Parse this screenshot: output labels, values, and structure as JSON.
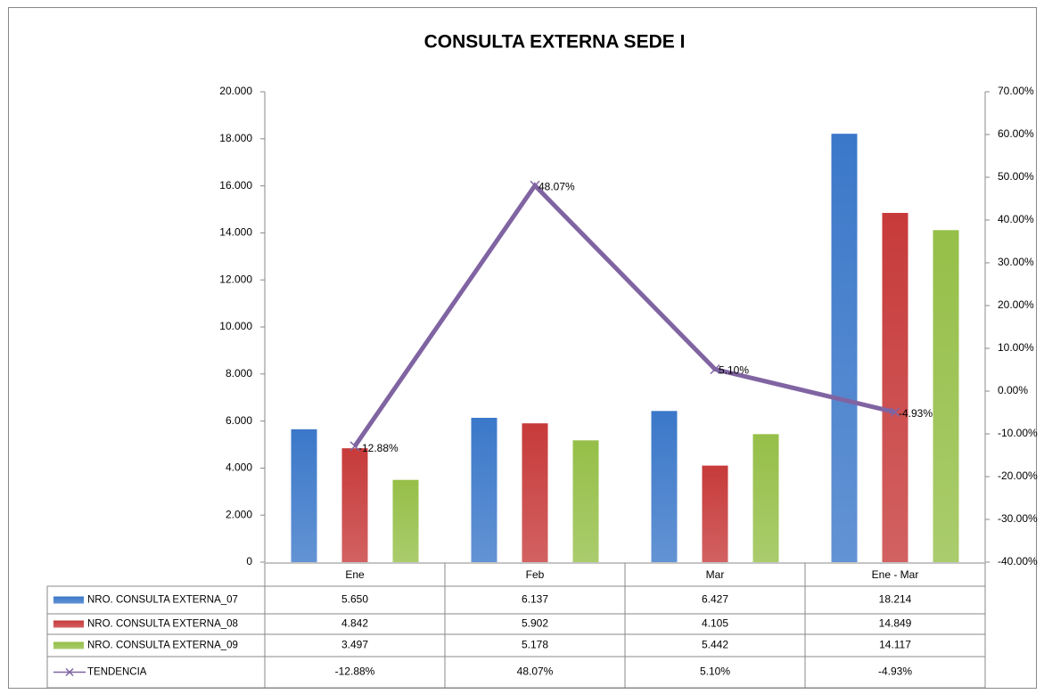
{
  "chart_data": {
    "type": "bar",
    "title": "CONSULTA EXTERNA SEDE I",
    "categories": [
      "Ene",
      "Feb",
      "Mar",
      "Ene - Mar"
    ],
    "series": [
      {
        "name": "NRO. CONSULTA EXTERNA_07",
        "color": "#3b78c9",
        "values": [
          5650,
          6137,
          6427,
          18214
        ],
        "value_labels": [
          "5.650",
          "6.137",
          "6.427",
          "18.214"
        ]
      },
      {
        "name": "NRO. CONSULTA EXTERNA_08",
        "color": "#c73a3a",
        "values": [
          4842,
          5902,
          4105,
          14849
        ],
        "value_labels": [
          "4.842",
          "5.902",
          "4.105",
          "14.849"
        ]
      },
      {
        "name": "NRO. CONSULTA EXTERNA_09",
        "color": "#95bf48",
        "values": [
          3497,
          5178,
          5442,
          14117
        ],
        "value_labels": [
          "3.497",
          "5.178",
          "5.442",
          "14.117"
        ]
      },
      {
        "name": "TENDENCIA",
        "type": "line",
        "axis": "y2",
        "color": "#8064a2",
        "values": [
          -12.88,
          48.07,
          5.1,
          -4.93
        ],
        "value_labels": [
          "-12.88%",
          "48.07%",
          "5.10%",
          "-4.93%"
        ]
      }
    ],
    "ylim": [
      0,
      20000
    ],
    "yticks": [
      0,
      {
        "value": 2000,
        "label": "2.000"
      },
      {
        "value": 4000,
        "label": "4.000"
      },
      {
        "value": 6000,
        "label": "6.000"
      },
      {
        "value": 8000,
        "label": "8.000"
      },
      {
        "value": 10000,
        "label": "10.000"
      },
      {
        "value": 12000,
        "label": "12.000"
      },
      {
        "value": 14000,
        "label": "14.000"
      },
      {
        "value": 16000,
        "label": "16.000"
      },
      {
        "value": 18000,
        "label": "18.000"
      },
      {
        "value": 20000,
        "label": "20.000"
      }
    ],
    "y2lim": [
      -40,
      70
    ],
    "y2ticks": [
      {
        "value": -40,
        "label": "-40.00%"
      },
      {
        "value": -30,
        "label": "-30.00%"
      },
      {
        "value": -20,
        "label": "-20.00%"
      },
      {
        "value": -10,
        "label": "-10.00%"
      },
      {
        "value": 0,
        "label": "0.00%"
      },
      {
        "value": 10,
        "label": "10.00%"
      },
      {
        "value": 20,
        "label": "20.00%"
      },
      {
        "value": 30,
        "label": "30.00%"
      },
      {
        "value": 40,
        "label": "40.00%"
      },
      {
        "value": 50,
        "label": "50.00%"
      },
      {
        "value": 60,
        "label": "60.00%"
      },
      {
        "value": 70,
        "label": "70.00%"
      }
    ],
    "grid": false
  }
}
